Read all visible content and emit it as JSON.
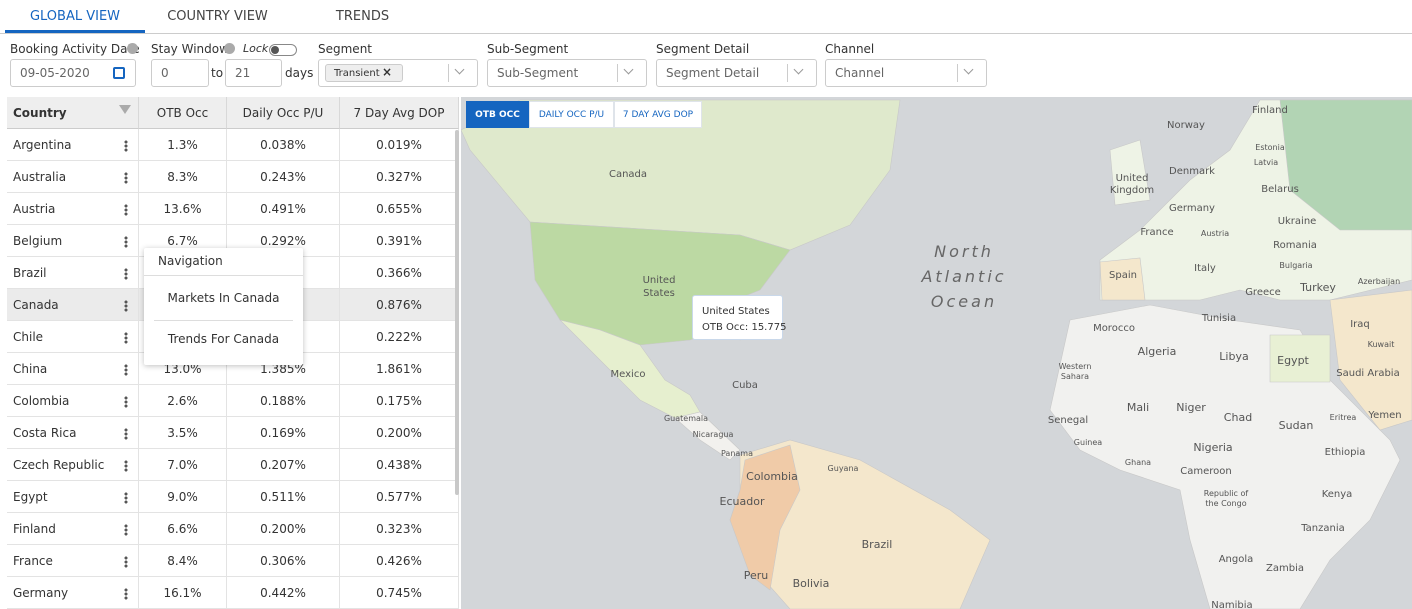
{
  "tabs": [
    "GLOBAL VIEW",
    "COUNTRY VIEW",
    "TRENDS"
  ],
  "filters": {
    "booking_date": {
      "label": "Booking Activity Date",
      "value": "09-05-2020"
    },
    "stay_window": {
      "label": "Stay Window",
      "lock": "Lock",
      "from": "0",
      "to_text": "to",
      "to": "21",
      "unit": "days"
    },
    "segment": {
      "label": "Segment",
      "chip": "Transient"
    },
    "sub_segment": {
      "label": "Sub-Segment",
      "placeholder": "Sub-Segment"
    },
    "segment_detail": {
      "label": "Segment Detail",
      "placeholder": "Segment Detail"
    },
    "channel": {
      "label": "Channel",
      "placeholder": "Channel"
    }
  },
  "table": {
    "headers": [
      "Country",
      "OTB Occ",
      "Daily Occ P/U",
      "7 Day Avg DOP"
    ],
    "rows": [
      [
        "Argentina",
        "1.3%",
        "0.038%",
        "0.019%"
      ],
      [
        "Australia",
        "8.3%",
        "0.243%",
        "0.327%"
      ],
      [
        "Austria",
        "13.6%",
        "0.491%",
        "0.655%"
      ],
      [
        "Belgium",
        "6.7%",
        "0.292%",
        "0.391%"
      ],
      [
        "Brazil",
        null,
        null,
        "0.366%"
      ],
      [
        "Canada",
        null,
        null,
        "0.876%"
      ],
      [
        "Chile",
        null,
        null,
        "0.222%"
      ],
      [
        "China",
        "13.0%",
        "1.385%",
        "1.861%"
      ],
      [
        "Colombia",
        "2.6%",
        "0.188%",
        "0.175%"
      ],
      [
        "Costa Rica",
        "3.5%",
        "0.169%",
        "0.200%"
      ],
      [
        "Czech Republic",
        "7.0%",
        "0.207%",
        "0.438%"
      ],
      [
        "Egypt",
        "9.0%",
        "0.511%",
        "0.577%"
      ],
      [
        "Finland",
        "6.6%",
        "0.200%",
        "0.323%"
      ],
      [
        "France",
        "8.4%",
        "0.306%",
        "0.426%"
      ],
      [
        "Germany",
        "16.1%",
        "0.442%",
        "0.745%"
      ]
    ]
  },
  "context_menu": {
    "title": "Navigation",
    "items": [
      "Markets In Canada",
      "Trends For Canada"
    ]
  },
  "map": {
    "buttons": [
      "OTB OCC",
      "DAILY OCC P/U",
      "7 DAY AVG DOP"
    ],
    "tooltip": {
      "title": "United States",
      "label": "OTB Occ:",
      "value": "15.775"
    },
    "labels": [
      "Canada",
      "United States",
      "Mexico",
      "Cuba",
      "Guatemala",
      "Nicaragua",
      "Panama",
      "Colombia",
      "Ecuador",
      "Peru",
      "Bolivia",
      "Brazil",
      "Guyana",
      "North Atlantic Ocean",
      "Finland",
      "Norway",
      "Estonia",
      "Latvia",
      "United Kingdom",
      "Denmark",
      "Belarus",
      "Germany",
      "Ukraine",
      "France",
      "Austria",
      "Romania",
      "Spain",
      "Italy",
      "Bulgaria",
      "Greece",
      "Turkey",
      "Azerbaijan",
      "Morocco",
      "Tunisia",
      "Iraq",
      "Kuwait",
      "Algeria",
      "Libya",
      "Egypt",
      "Saudi Arabia",
      "Western Sahara",
      "Mali",
      "Niger",
      "Chad",
      "Sudan",
      "Eritrea",
      "Yemen",
      "Senegal",
      "Guinea",
      "Nigeria",
      "Ethiopia",
      "Ghana",
      "Cameroon",
      "Kenya",
      "Republic of the Congo",
      "Tanzania",
      "Angola",
      "Zambia",
      "Namibia"
    ]
  }
}
